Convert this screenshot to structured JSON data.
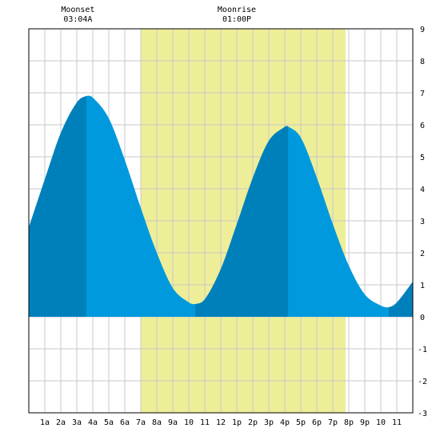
{
  "chart_data": {
    "type": "area",
    "title": "",
    "xlabel": "",
    "ylabel": "",
    "x_unit": "hour of day",
    "xlim": [
      0,
      24
    ],
    "ylim": [
      -3,
      9
    ],
    "y_ticks": [
      -3,
      -2,
      -1,
      0,
      1,
      2,
      3,
      4,
      5,
      6,
      7,
      8,
      9
    ],
    "y_tick_labels": [
      "-3",
      "-2",
      "-1",
      "0",
      "1",
      "2",
      "3",
      "4",
      "5",
      "6",
      "7",
      "8",
      "9"
    ],
    "x_ticks": [
      1,
      2,
      3,
      4,
      5,
      6,
      7,
      8,
      9,
      10,
      11,
      12,
      13,
      14,
      15,
      16,
      17,
      18,
      19,
      20,
      21,
      22,
      23
    ],
    "x_tick_labels": [
      "1a",
      "2a",
      "3a",
      "4a",
      "5a",
      "6a",
      "7a",
      "8a",
      "9a",
      "10",
      "11",
      "12",
      "1p",
      "2p",
      "3p",
      "4p",
      "5p",
      "6p",
      "7p",
      "8p",
      "9p",
      "10",
      "11"
    ],
    "grid": true,
    "daylight_band": {
      "from": 7.0,
      "to": 19.8
    },
    "tide_extremes": [
      {
        "x": 3.6,
        "y": 6.9,
        "kind": "high"
      },
      {
        "x": 10.4,
        "y": 0.4,
        "kind": "low"
      },
      {
        "x": 16.2,
        "y": 5.95,
        "kind": "high"
      },
      {
        "x": 22.5,
        "y": 0.3,
        "kind": "low"
      }
    ],
    "series": [
      {
        "x": [
          0,
          1,
          2,
          3,
          3.6,
          4,
          5,
          6,
          7,
          8,
          9,
          10,
          10.4,
          11,
          12,
          13,
          14,
          15,
          16,
          16.2,
          17,
          18,
          19,
          20,
          21,
          22,
          22.5,
          23,
          24
        ],
        "y": [
          2.8,
          4.3,
          5.75,
          6.7,
          6.9,
          6.85,
          6.2,
          4.9,
          3.4,
          2.0,
          0.9,
          0.45,
          0.4,
          0.55,
          1.5,
          2.9,
          4.35,
          5.5,
          5.94,
          5.95,
          5.6,
          4.35,
          2.9,
          1.6,
          0.7,
          0.35,
          0.3,
          0.45,
          1.1
        ]
      }
    ],
    "colors": {
      "daylight": "#eeee99",
      "tide_fill": "#0099dd",
      "tide_shade": "#0080bb",
      "grid": "#c8c8c8",
      "frame": "#000000"
    }
  },
  "events": [
    {
      "label": "Moonset",
      "time": "03:04A",
      "x": 3.07
    },
    {
      "label": "Moonrise",
      "time": "01:00P",
      "x": 13.0
    }
  ]
}
